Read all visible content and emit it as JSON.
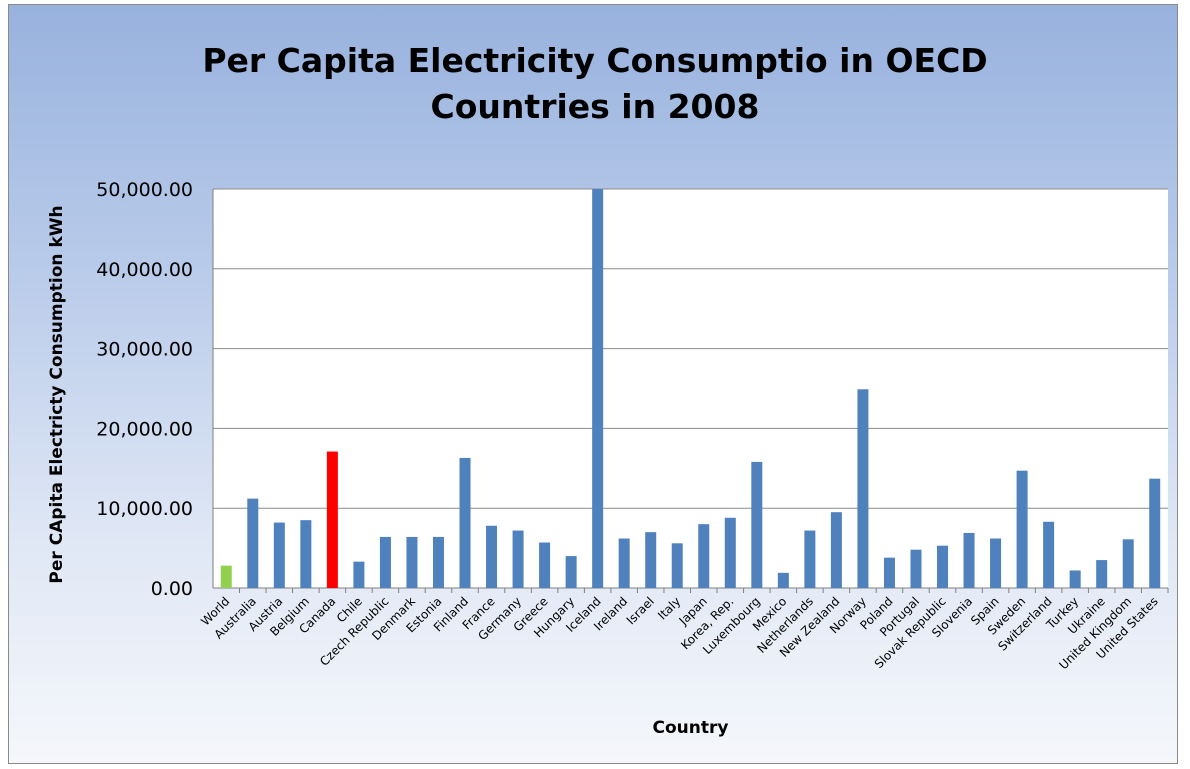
{
  "chart_data": {
    "type": "bar",
    "title": "Per Capita Electricity Consumptio in OECD\nCountries in 2008",
    "xlabel": "Country",
    "ylabel": "Per CApita Electricty Consumption kWh",
    "ylim": [
      0,
      50000
    ],
    "yticks": [
      "0.00",
      "10,000.00",
      "20,000.00",
      "30,000.00",
      "40,000.00",
      "50,000.00"
    ],
    "grid": true,
    "legend": "none",
    "categories": [
      "World",
      "Australia",
      "Austria",
      "Belgium",
      "Canada",
      "Chile",
      "Czech Republic",
      "Denmark",
      "Estonia",
      "Finland",
      "France",
      "Germany",
      "Greece",
      "Hungary",
      "Iceland",
      "Ireland",
      "Israel",
      "Italy",
      "Japan",
      "Korea, Rep.",
      "Luxembourg",
      "Mexico",
      "Netherlands",
      "New Zealand",
      "Norway",
      "Poland",
      "Portugal",
      "Slovak Republic",
      "Slovenia",
      "Spain",
      "Sweden",
      "Switzerland",
      "Turkey",
      "Ukraine",
      "United Kingdom",
      "United States"
    ],
    "values": [
      2800,
      11200,
      8200,
      8500,
      17100,
      3300,
      6400,
      6400,
      6400,
      16300,
      7800,
      7200,
      5700,
      4000,
      50000,
      6200,
      7000,
      5600,
      8000,
      8800,
      15800,
      1900,
      7200,
      9500,
      24900,
      3800,
      4800,
      5300,
      6900,
      6200,
      14700,
      8300,
      2200,
      3500,
      6100,
      13700
    ],
    "colors": {
      "default": "#4f81bd",
      "World": "#92d050",
      "Canada": "#ff0000"
    }
  }
}
